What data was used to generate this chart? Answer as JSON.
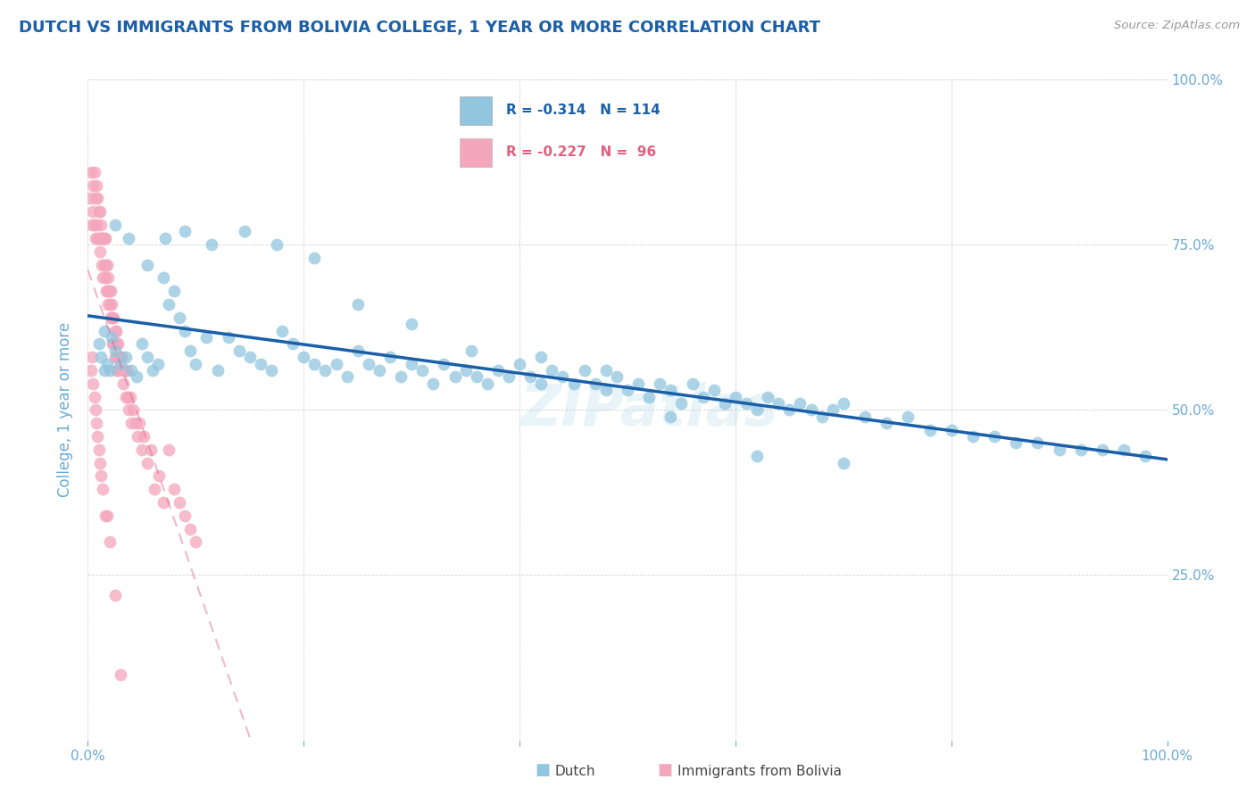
{
  "title": "DUTCH VS IMMIGRANTS FROM BOLIVIA COLLEGE, 1 YEAR OR MORE CORRELATION CHART",
  "source": "Source: ZipAtlas.com",
  "ylabel": "College, 1 year or more",
  "legend_blue_label": "Dutch",
  "legend_pink_label": "Immigrants from Bolivia",
  "legend_blue_r": "R = -0.314",
  "legend_blue_n": "N = 114",
  "legend_pink_r": "R = -0.227",
  "legend_pink_n": "N =  96",
  "blue_color": "#92c5de",
  "pink_color": "#f4a6bd",
  "blue_line_color": "#1a5fa8",
  "pink_line_color": "#e06080",
  "watermark": "ZIPatlas",
  "title_color": "#1a5fa8",
  "axis_label_color": "#6aaad8",
  "tick_label_color": "#6aaad8",
  "grid_color": "#cccccc",
  "xlim": [
    0.0,
    1.0
  ],
  "ylim": [
    0.0,
    1.0
  ],
  "yticks_right": [
    0.25,
    0.5,
    0.75,
    1.0
  ],
  "ytick_labels_right": [
    "25.0%",
    "50.0%",
    "75.0%",
    "100.0%"
  ],
  "blue_scatter_x": [
    0.01,
    0.012,
    0.015,
    0.018,
    0.02,
    0.022,
    0.025,
    0.03,
    0.035,
    0.04,
    0.045,
    0.05,
    0.055,
    0.06,
    0.065,
    0.07,
    0.075,
    0.08,
    0.085,
    0.09,
    0.095,
    0.1,
    0.11,
    0.12,
    0.13,
    0.14,
    0.15,
    0.16,
    0.17,
    0.18,
    0.19,
    0.2,
    0.21,
    0.22,
    0.23,
    0.24,
    0.25,
    0.26,
    0.27,
    0.28,
    0.29,
    0.3,
    0.31,
    0.32,
    0.33,
    0.34,
    0.35,
    0.36,
    0.37,
    0.38,
    0.39,
    0.4,
    0.41,
    0.42,
    0.43,
    0.44,
    0.45,
    0.46,
    0.47,
    0.48,
    0.49,
    0.5,
    0.51,
    0.52,
    0.53,
    0.54,
    0.55,
    0.56,
    0.57,
    0.58,
    0.59,
    0.6,
    0.61,
    0.62,
    0.63,
    0.64,
    0.65,
    0.66,
    0.67,
    0.68,
    0.69,
    0.7,
    0.72,
    0.74,
    0.76,
    0.78,
    0.8,
    0.82,
    0.84,
    0.86,
    0.88,
    0.9,
    0.92,
    0.94,
    0.96,
    0.98,
    0.015,
    0.025,
    0.038,
    0.055,
    0.072,
    0.09,
    0.115,
    0.145,
    0.175,
    0.21,
    0.25,
    0.3,
    0.355,
    0.42,
    0.48,
    0.54,
    0.62,
    0.7
  ],
  "blue_scatter_y": [
    0.6,
    0.58,
    0.62,
    0.57,
    0.56,
    0.61,
    0.59,
    0.57,
    0.58,
    0.56,
    0.55,
    0.6,
    0.58,
    0.56,
    0.57,
    0.7,
    0.66,
    0.68,
    0.64,
    0.62,
    0.59,
    0.57,
    0.61,
    0.56,
    0.61,
    0.59,
    0.58,
    0.57,
    0.56,
    0.62,
    0.6,
    0.58,
    0.57,
    0.56,
    0.57,
    0.55,
    0.59,
    0.57,
    0.56,
    0.58,
    0.55,
    0.57,
    0.56,
    0.54,
    0.57,
    0.55,
    0.56,
    0.55,
    0.54,
    0.56,
    0.55,
    0.57,
    0.55,
    0.54,
    0.56,
    0.55,
    0.54,
    0.56,
    0.54,
    0.53,
    0.55,
    0.53,
    0.54,
    0.52,
    0.54,
    0.53,
    0.51,
    0.54,
    0.52,
    0.53,
    0.51,
    0.52,
    0.51,
    0.5,
    0.52,
    0.51,
    0.5,
    0.51,
    0.5,
    0.49,
    0.5,
    0.51,
    0.49,
    0.48,
    0.49,
    0.47,
    0.47,
    0.46,
    0.46,
    0.45,
    0.45,
    0.44,
    0.44,
    0.44,
    0.44,
    0.43,
    0.56,
    0.78,
    0.76,
    0.72,
    0.76,
    0.77,
    0.75,
    0.77,
    0.75,
    0.73,
    0.66,
    0.63,
    0.59,
    0.58,
    0.56,
    0.49,
    0.43,
    0.42
  ],
  "pink_scatter_x": [
    0.002,
    0.003,
    0.004,
    0.005,
    0.005,
    0.006,
    0.006,
    0.007,
    0.007,
    0.008,
    0.008,
    0.009,
    0.009,
    0.01,
    0.01,
    0.011,
    0.011,
    0.012,
    0.012,
    0.013,
    0.013,
    0.014,
    0.014,
    0.015,
    0.015,
    0.016,
    0.016,
    0.017,
    0.017,
    0.018,
    0.018,
    0.019,
    0.019,
    0.02,
    0.02,
    0.021,
    0.021,
    0.022,
    0.022,
    0.023,
    0.023,
    0.024,
    0.024,
    0.025,
    0.025,
    0.026,
    0.026,
    0.027,
    0.027,
    0.028,
    0.028,
    0.029,
    0.03,
    0.031,
    0.032,
    0.033,
    0.034,
    0.035,
    0.036,
    0.037,
    0.038,
    0.039,
    0.04,
    0.042,
    0.044,
    0.046,
    0.048,
    0.05,
    0.052,
    0.055,
    0.058,
    0.062,
    0.066,
    0.07,
    0.075,
    0.08,
    0.085,
    0.09,
    0.095,
    0.1,
    0.003,
    0.004,
    0.005,
    0.006,
    0.007,
    0.008,
    0.009,
    0.01,
    0.011,
    0.012,
    0.014,
    0.016,
    0.018,
    0.02,
    0.025,
    0.03
  ],
  "pink_scatter_y": [
    0.82,
    0.86,
    0.78,
    0.84,
    0.8,
    0.86,
    0.78,
    0.82,
    0.76,
    0.84,
    0.78,
    0.82,
    0.76,
    0.8,
    0.76,
    0.8,
    0.74,
    0.78,
    0.76,
    0.76,
    0.72,
    0.76,
    0.7,
    0.76,
    0.72,
    0.7,
    0.76,
    0.72,
    0.68,
    0.72,
    0.68,
    0.7,
    0.66,
    0.68,
    0.66,
    0.68,
    0.64,
    0.66,
    0.64,
    0.64,
    0.6,
    0.64,
    0.6,
    0.62,
    0.58,
    0.62,
    0.58,
    0.6,
    0.56,
    0.6,
    0.56,
    0.58,
    0.58,
    0.58,
    0.56,
    0.54,
    0.56,
    0.52,
    0.56,
    0.52,
    0.5,
    0.52,
    0.48,
    0.5,
    0.48,
    0.46,
    0.48,
    0.44,
    0.46,
    0.42,
    0.44,
    0.38,
    0.4,
    0.36,
    0.44,
    0.38,
    0.36,
    0.34,
    0.32,
    0.3,
    0.56,
    0.58,
    0.54,
    0.52,
    0.5,
    0.48,
    0.46,
    0.44,
    0.42,
    0.4,
    0.38,
    0.34,
    0.34,
    0.3,
    0.22,
    0.1
  ]
}
